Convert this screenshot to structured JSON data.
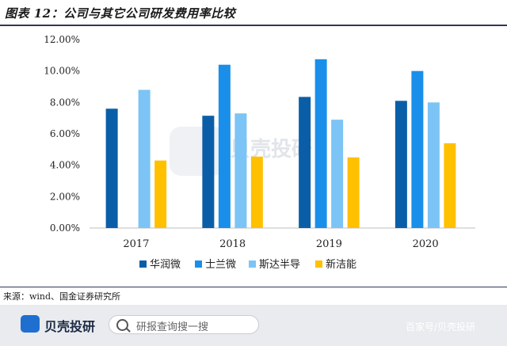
{
  "figure": {
    "title": "图表 12：公司与其它公司研发费用率比较"
  },
  "source": "来源：wind、国金证券研究所",
  "watermark": "贝壳投研",
  "footer": {
    "brand": "贝壳投研",
    "search_placeholder": "研报查询搜一搜",
    "credit": "百家号/贝壳投研"
  },
  "colors": {
    "title_rule": "#2b3a55"
  },
  "chart_data": {
    "type": "bar",
    "categories": [
      "2017",
      "2018",
      "2019",
      "2020"
    ],
    "series": [
      {
        "name": "华润微",
        "color": "#0a5ea8",
        "values": [
          7.6,
          7.15,
          8.35,
          8.1
        ]
      },
      {
        "name": "士兰微",
        "color": "#1a8fea",
        "values": [
          null,
          10.4,
          10.75,
          10.0
        ]
      },
      {
        "name": "斯达半导",
        "color": "#7cc4f5",
        "values": [
          8.8,
          7.3,
          6.9,
          8.0
        ]
      },
      {
        "name": "新洁能",
        "color": "#ffc000",
        "values": [
          4.3,
          4.55,
          4.5,
          5.4
        ]
      }
    ],
    "yticks": [
      "0.00%",
      "2.00%",
      "4.00%",
      "6.00%",
      "8.00%",
      "10.00%",
      "12.00%"
    ],
    "ylim": [
      0,
      12
    ],
    "legend": "bottom",
    "grid": false
  }
}
